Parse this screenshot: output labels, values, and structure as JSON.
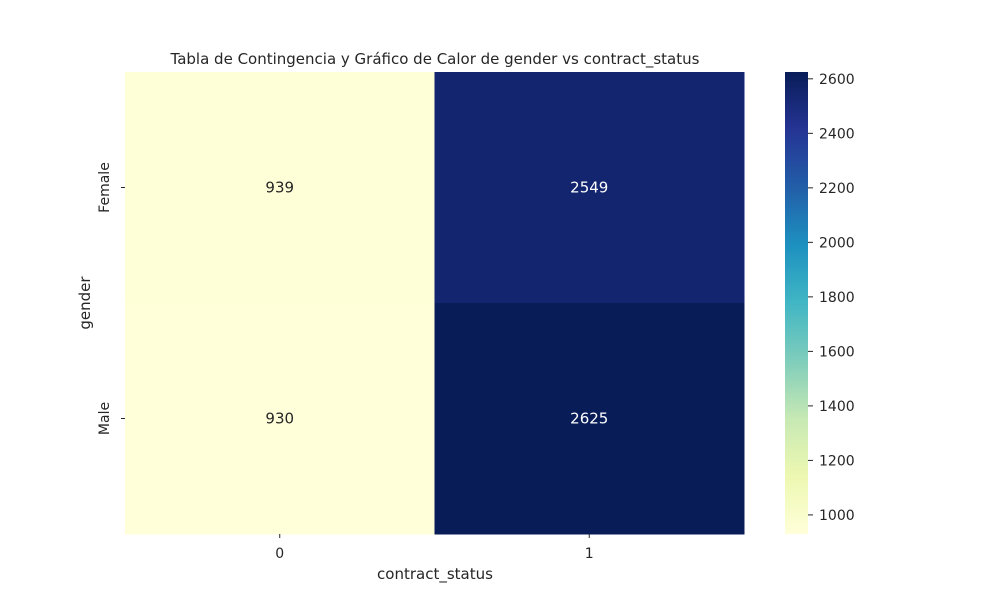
{
  "chart_data": {
    "type": "heatmap",
    "title": "Tabla de Contingencia y Gráfico de Calor de gender vs contract_status",
    "xlabel": "contract_status",
    "ylabel": "gender",
    "x_categories": [
      "0",
      "1"
    ],
    "y_categories": [
      "Female",
      "Male"
    ],
    "values": [
      [
        939,
        2549
      ],
      [
        930,
        2625
      ]
    ],
    "colorbar": {
      "min": 930,
      "max": 2625,
      "ticks": [
        1000,
        1200,
        1400,
        1600,
        1800,
        2000,
        2200,
        2400,
        2600
      ],
      "colormap": "YlGnBu",
      "stops": [
        "#ffffd9",
        "#edf8b1",
        "#c7e9b4",
        "#7fcdbb",
        "#41b6c4",
        "#1d91c0",
        "#225ea8",
        "#253494",
        "#081d58"
      ]
    },
    "annotation_colors": {
      "light_cell": "#262626",
      "dark_cell": "#ffffff"
    },
    "grid": false,
    "legend": "colorbar-right"
  }
}
